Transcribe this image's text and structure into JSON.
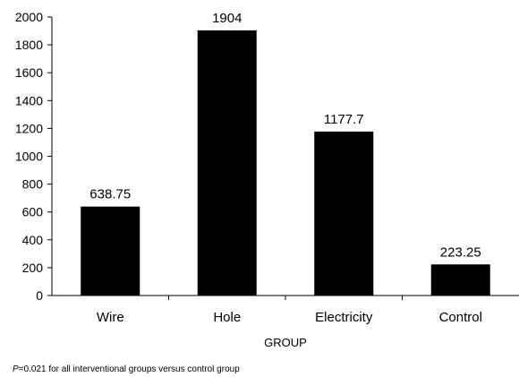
{
  "chart_data": {
    "type": "bar",
    "categories": [
      "Wire",
      "Hole",
      "Electricity",
      "Control"
    ],
    "values": [
      638.75,
      1904,
      1177.7,
      223.25
    ],
    "data_labels": [
      "638.75",
      "1904",
      "1177.7",
      "223.25"
    ],
    "title": "",
    "xlabel": "GROUP",
    "ylabel": "",
    "ylim": [
      0,
      2000
    ],
    "yticks": [
      0,
      200,
      400,
      600,
      800,
      1000,
      1200,
      1400,
      1600,
      1800,
      2000
    ],
    "grid": false,
    "legend": "none",
    "bar_color": "#000000"
  },
  "footnote": {
    "p_symbol": "P",
    "text": "=0.021 for all interventional groups versus control group"
  }
}
